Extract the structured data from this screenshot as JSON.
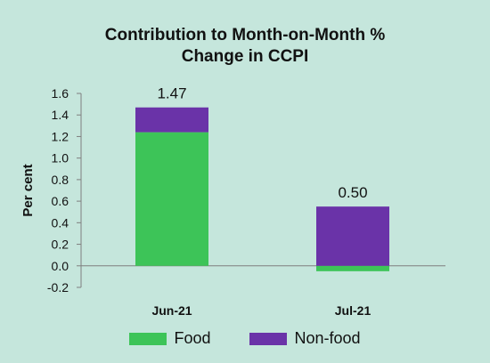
{
  "chart_data": {
    "type": "bar",
    "stacked": true,
    "title_lines": [
      "Contribution to Month-on-Month %",
      "Change in CCPI"
    ],
    "ylabel": "Per cent",
    "xlabel": "",
    "categories": [
      "Jun-21",
      "Jul-21"
    ],
    "ylim": [
      -0.2,
      1.6
    ],
    "yticks": [
      "1.6",
      "1.4",
      "1.2",
      "1.0",
      "0.8",
      "0.6",
      "0.4",
      "0.2",
      "0.0",
      "-0.2"
    ],
    "ytick_values": [
      1.6,
      1.4,
      1.2,
      1.0,
      0.8,
      0.6,
      0.4,
      0.2,
      0.0,
      -0.2
    ],
    "series": [
      {
        "name": "Food",
        "color": "#3dc458",
        "values": [
          1.24,
          -0.05
        ]
      },
      {
        "name": "Non-food",
        "color": "#6a33a8",
        "values": [
          0.23,
          0.55
        ]
      }
    ],
    "totals": [
      "1.47",
      "0.50"
    ],
    "grid": false,
    "legend_position": "bottom",
    "background_color": "#c5e6dc"
  }
}
